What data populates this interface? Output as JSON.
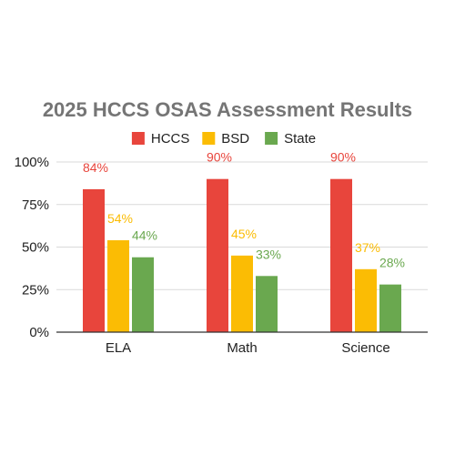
{
  "chart_data": {
    "type": "bar",
    "title": "2025 HCCS OSAS Assessment Results",
    "xlabel": "",
    "ylabel": "",
    "categories": [
      "ELA",
      "Math",
      "Science"
    ],
    "series": [
      {
        "name": "HCCS",
        "color": "#e8453c",
        "values": [
          84,
          90,
          90
        ],
        "labels": [
          "84%",
          "90%",
          "90%"
        ]
      },
      {
        "name": "BSD",
        "color": "#fbbc04",
        "values": [
          54,
          45,
          37
        ],
        "labels": [
          "54%",
          "45%",
          "37%"
        ]
      },
      {
        "name": "State",
        "color": "#6aa84f",
        "values": [
          44,
          33,
          28
        ],
        "labels": [
          "44%",
          "33%",
          "28%"
        ]
      }
    ],
    "ylim": [
      0,
      100
    ],
    "yticks": [
      0,
      25,
      50,
      75,
      100
    ],
    "ytick_labels": [
      "0%",
      "25%",
      "50%",
      "75%",
      "100%"
    ],
    "grid": true,
    "legend": "top-center"
  }
}
